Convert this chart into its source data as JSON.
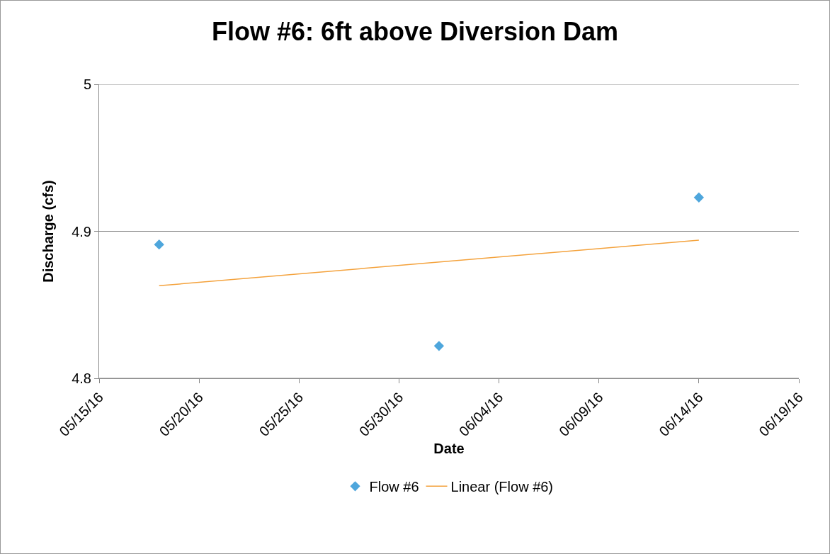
{
  "chart_data": {
    "type": "scatter",
    "title": "Flow #6: 6ft above Diversion Dam",
    "xlabel": "Date",
    "ylabel": "Discharge (cfs)",
    "x": [
      "--05-18",
      "--06-01",
      "--06-14"
    ],
    "series": [
      {
        "name": "Flow #6",
        "color": "#4ea6dc",
        "values": [
          4.891,
          4.822,
          4.923
        ],
        "marker": "diamond"
      },
      {
        "name": "Linear (Flow #6)",
        "type": "line",
        "color": "#f4a23c",
        "x": [
          "--05-18",
          "--06-14"
        ],
        "values": [
          4.863,
          4.894
        ],
        "marker": "none",
        "line_style": "solid"
      }
    ],
    "xlim": [
      "--05-15",
      "--06-19"
    ],
    "xticks": [
      {
        "value": "--05-15",
        "label": "05/15/16"
      },
      {
        "value": "--05-20",
        "label": "05/20/16"
      },
      {
        "value": "--05-25",
        "label": "05/25/16"
      },
      {
        "value": "--05-30",
        "label": "05/30/16"
      },
      {
        "value": "--06-04",
        "label": "06/04/16"
      },
      {
        "value": "--06-09",
        "label": "06/09/16"
      },
      {
        "value": "--06-14",
        "label": "06/14/16"
      },
      {
        "value": "--06-19",
        "label": "06/19/16"
      }
    ],
    "ylim": [
      4.8,
      5
    ],
    "yticks": [
      4.8,
      4.9,
      5
    ],
    "grid": "y",
    "legend": "bottom"
  }
}
